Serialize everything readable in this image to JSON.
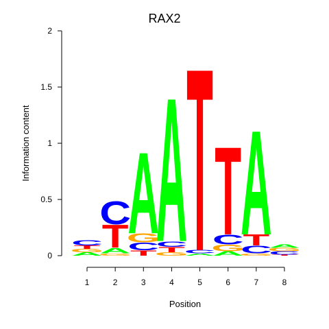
{
  "chart_data": {
    "type": "sequence-logo",
    "title": "RAX2",
    "xlabel": "Position",
    "ylabel": "Information content",
    "ylim": [
      0,
      2
    ],
    "yticks": [
      0,
      0.5,
      1,
      1.5,
      2
    ],
    "ytick_labels": [
      "0",
      "0.5",
      "1",
      "1.5",
      "2"
    ],
    "positions": [
      "1",
      "2",
      "3",
      "4",
      "5",
      "6",
      "7",
      "8"
    ],
    "colors": {
      "A": "#00ff00",
      "C": "#0000ff",
      "G": "#ffa500",
      "T": "#ff0000"
    },
    "columns": [
      [
        {
          "letter": "A",
          "height": 0.03
        },
        {
          "letter": "G",
          "height": 0.03
        },
        {
          "letter": "T",
          "height": 0.03
        },
        {
          "letter": "C",
          "height": 0.05
        }
      ],
      [
        {
          "letter": "G",
          "height": 0.02
        },
        {
          "letter": "A",
          "height": 0.05
        },
        {
          "letter": "T",
          "height": 0.21
        },
        {
          "letter": "C",
          "height": 0.21
        }
      ],
      [
        {
          "letter": "T",
          "height": 0.05
        },
        {
          "letter": "C",
          "height": 0.07
        },
        {
          "letter": "G",
          "height": 0.08
        },
        {
          "letter": "A",
          "height": 0.74
        }
      ],
      [
        {
          "letter": "G",
          "height": 0.03
        },
        {
          "letter": "T",
          "height": 0.05
        },
        {
          "letter": "C",
          "height": 0.05
        },
        {
          "letter": "A",
          "height": 1.31
        }
      ],
      [
        {
          "letter": "A",
          "height": 0.02
        },
        {
          "letter": "C",
          "height": 0.03
        },
        {
          "letter": "T",
          "height": 1.66
        }
      ],
      [
        {
          "letter": "A",
          "height": 0.04
        },
        {
          "letter": "G",
          "height": 0.06
        },
        {
          "letter": "C",
          "height": 0.09
        },
        {
          "letter": "T",
          "height": 0.8
        }
      ],
      [
        {
          "letter": "G",
          "height": 0.02
        },
        {
          "letter": "C",
          "height": 0.07
        },
        {
          "letter": "T",
          "height": 0.1
        },
        {
          "letter": "A",
          "height": 0.95
        }
      ],
      [
        {
          "letter": "T",
          "height": 0.01
        },
        {
          "letter": "C",
          "height": 0.03
        },
        {
          "letter": "G",
          "height": 0.03
        },
        {
          "letter": "A",
          "height": 0.03
        }
      ]
    ]
  }
}
